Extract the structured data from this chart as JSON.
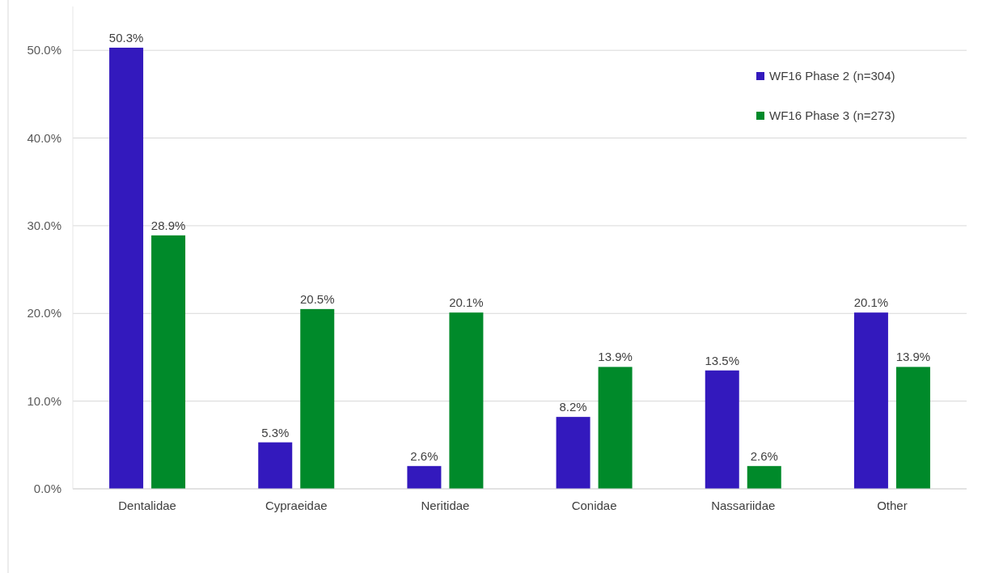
{
  "chart_data": {
    "type": "bar",
    "categories": [
      "Dentalidae",
      "Cypraeidae",
      "Neritidae",
      "Conidae",
      "Nassariidae",
      "Other"
    ],
    "series": [
      {
        "name": "WF16 Phase 2 (n=304)",
        "color": "#3319bd",
        "values": [
          50.3,
          5.3,
          2.6,
          8.2,
          13.5,
          20.1
        ],
        "value_labels": [
          "50.3%",
          "5.3%",
          "2.6%",
          "8.2%",
          "13.5%",
          "20.1%"
        ]
      },
      {
        "name": "WF16 Phase 3 (n=273)",
        "color": "#008a2a",
        "values": [
          28.9,
          20.5,
          20.1,
          13.9,
          2.6,
          13.9
        ],
        "value_labels": [
          "28.9%",
          "20.5%",
          "20.1%",
          "13.9%",
          "2.6%",
          "13.9%"
        ]
      }
    ],
    "ylim": [
      0,
      55
    ],
    "yticks": [
      {
        "value": 0,
        "label": "0.0%"
      },
      {
        "value": 10,
        "label": "10.0%"
      },
      {
        "value": 20,
        "label": "20.0%"
      },
      {
        "value": 30,
        "label": "30.0%"
      },
      {
        "value": 40,
        "label": "40.0%"
      },
      {
        "value": 50,
        "label": "50.0%"
      }
    ],
    "grid": "y",
    "legend": "top right"
  }
}
